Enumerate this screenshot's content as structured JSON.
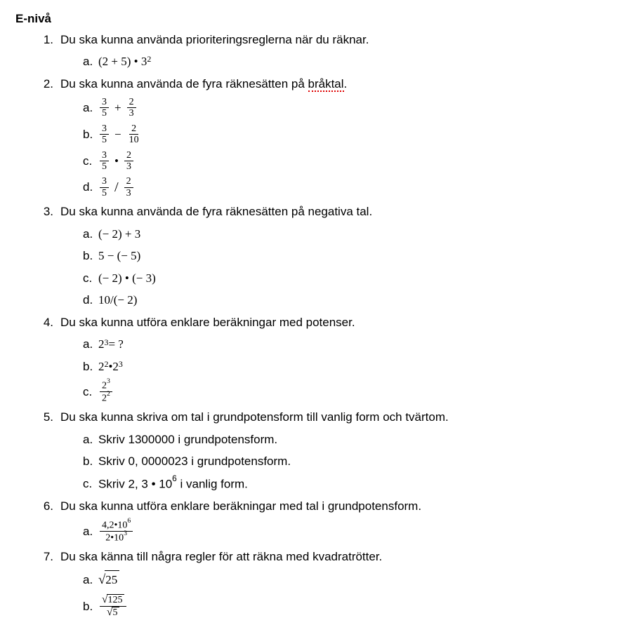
{
  "title": "E-nivå",
  "q1": {
    "text": "Du ska kunna använda prioriteringsreglerna när du räknar.",
    "a_base": "(2 + 5) • 3",
    "a_exp": "2"
  },
  "q2": {
    "text_pre": "Du ska kunna använda de fyra räknesätten på ",
    "text_br": "bråktal",
    "a": {
      "n1": "3",
      "d1": "5",
      "op": "+",
      "n2": "2",
      "d2": "3"
    },
    "b": {
      "n1": "3",
      "d1": "5",
      "op": "−",
      "n2": "2",
      "d2": "10"
    },
    "c": {
      "n1": "3",
      "d1": "5",
      "op": "•",
      "n2": "2",
      "d2": "3"
    },
    "d": {
      "n1": "3",
      "d1": "5",
      "op": "/",
      "n2": "2",
      "d2": "3"
    }
  },
  "q3": {
    "text": "Du ska kunna använda de fyra räknesätten på negativa tal.",
    "a": "(− 2) + 3",
    "b": "5 − (− 5)",
    "c": "(− 2) • (− 3)",
    "d": "10/(− 2)"
  },
  "q4": {
    "text": "Du ska kunna utföra enklare beräkningar med potenser.",
    "a_base": "2",
    "a_exp": "3",
    "a_tail": " = ?",
    "b_b1": "2",
    "b_e1": "2",
    "b_op": " • ",
    "b_b2": "2",
    "b_e2": "3",
    "c_nb": "2",
    "c_ne": "3",
    "c_db": "2",
    "c_de": "2"
  },
  "q5": {
    "text": "Du ska kunna skriva om tal i grundpotensform till vanlig form och tvärtom.",
    "a": "Skriv 1300000 i grundpotensform.",
    "b": "Skriv 0, 0000023 i grundpotensform.",
    "c_pre": "Skriv 2, 3 • 10",
    "c_exp": "6",
    "c_post": " i vanlig form."
  },
  "q6": {
    "text": "Du ska kunna utföra enklare beräkningar med tal i grundpotensform.",
    "a_num_pre": "4,2•10",
    "a_num_exp": "6",
    "a_den_pre": "2•10",
    "a_den_exp": "3"
  },
  "q7": {
    "text": "Du ska känna till några regler för att räkna med kvadratrötter.",
    "a_arg": "25",
    "b_num_arg": "125",
    "b_den_arg": "5"
  },
  "letters": {
    "a": "a.",
    "b": "b.",
    "c": "c.",
    "d": "d."
  },
  "nums": {
    "1": "1.",
    "2": "2.",
    "3": "3.",
    "4": "4.",
    "5": "5.",
    "6": "6.",
    "7": "7."
  }
}
